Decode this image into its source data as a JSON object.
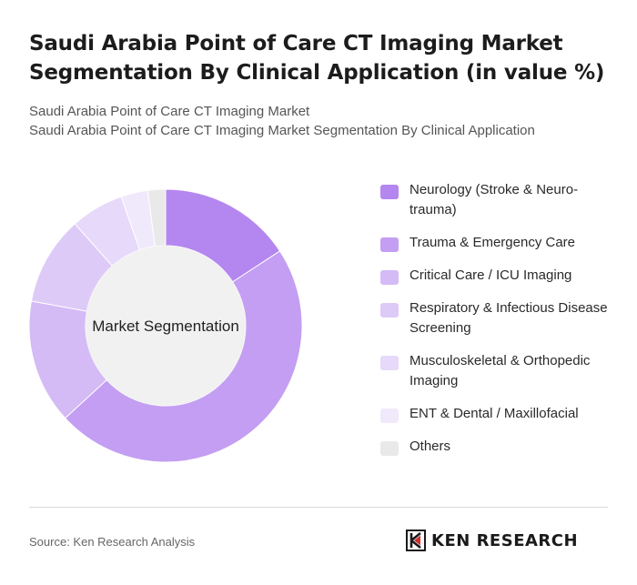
{
  "header": {
    "title": "Saudi Arabia Point of Care CT Imaging Market Segmentation By Clinical Application (in value %)",
    "subtitle_line1": "Saudi Arabia Point of Care CT Imaging Market",
    "subtitle_line2": "Saudi Arabia Point of Care CT Imaging Market Segmentation By Clinical Application"
  },
  "chart_data": {
    "type": "pie",
    "variant": "donut",
    "center_label": "Market Segmentation",
    "categories": [
      "Neurology (Stroke & Neuro-trauma)",
      "Trauma & Emergency Care",
      "Critical Care / ICU Imaging",
      "Respiratory & Infectious Disease Screening",
      "Musculoskeletal & Orthopedic Imaging",
      "ENT & Dental / Maxillofacial",
      "Others"
    ],
    "values": [
      15,
      45,
      14,
      10,
      6,
      3,
      2
    ],
    "colors": [
      "#b486ef",
      "#c39ef2",
      "#d4bbf5",
      "#ddcaf7",
      "#e6d9f9",
      "#f0e9fb",
      "#e9e9e9"
    ],
    "legend_position": "right"
  },
  "legend": {
    "items": [
      "Neurology (Stroke & Neuro-trauma)",
      "Trauma & Emergency Care",
      "Critical Care / ICU Imaging",
      "Respiratory & Infectious Disease Screening",
      "Musculoskeletal & Orthopedic Imaging",
      "ENT & Dental / Maxillofacial",
      "Others"
    ]
  },
  "footer": {
    "source": "Source: Ken Research Analysis",
    "brand": "KEN RESEARCH"
  }
}
